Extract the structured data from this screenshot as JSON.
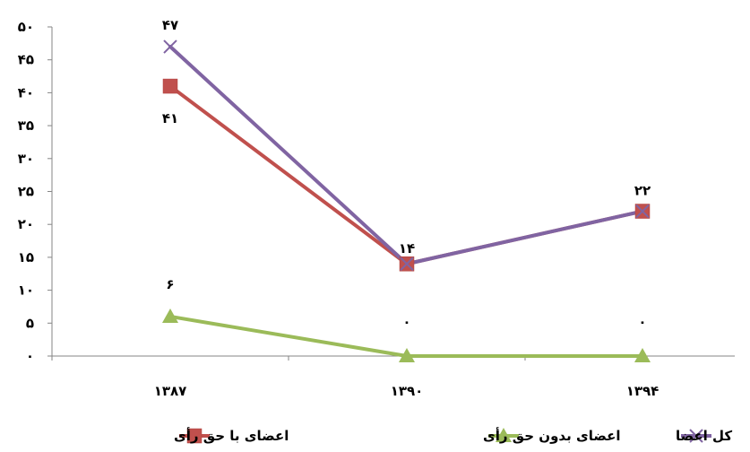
{
  "chart_data": {
    "type": "line",
    "categories": [
      "۱۳۸۷",
      "۱۳۹۰",
      "۱۳۹۴"
    ],
    "ylim": [
      0,
      50
    ],
    "y_ticks": [
      {
        "value": 0,
        "label": "۰"
      },
      {
        "value": 5,
        "label": "۵"
      },
      {
        "value": 10,
        "label": "۱۰"
      },
      {
        "value": 15,
        "label": "۱۵"
      },
      {
        "value": 20,
        "label": "۲۰"
      },
      {
        "value": 25,
        "label": "۲۵"
      },
      {
        "value": 30,
        "label": "۳۰"
      },
      {
        "value": 35,
        "label": "۳۵"
      },
      {
        "value": 40,
        "label": "۴۰"
      },
      {
        "value": 45,
        "label": "۴۵"
      },
      {
        "value": 50,
        "label": "۵۰"
      }
    ],
    "grid": false,
    "legend_position": "bottom",
    "series": [
      {
        "name": "اعضای با حق رأی",
        "values": [
          41,
          14,
          22
        ],
        "color": "#c0504d",
        "marker": "square",
        "labels": [
          "۴۱",
          "",
          ""
        ]
      },
      {
        "name": "اعضای بدون حق رأی",
        "values": [
          6,
          0,
          0
        ],
        "color": "#9bbb59",
        "marker": "triangle",
        "labels": [
          "۶",
          "۰",
          "۰"
        ]
      },
      {
        "name": "کل اعضا",
        "values": [
          47,
          14,
          22
        ],
        "color": "#8064a2",
        "marker": "x",
        "labels": [
          "۴۷",
          "۱۴",
          "۲۲"
        ]
      }
    ],
    "legend_order": [
      "کل اعضا",
      "اعضای بدون حق رأی",
      "اعضای با حق رأی"
    ]
  }
}
